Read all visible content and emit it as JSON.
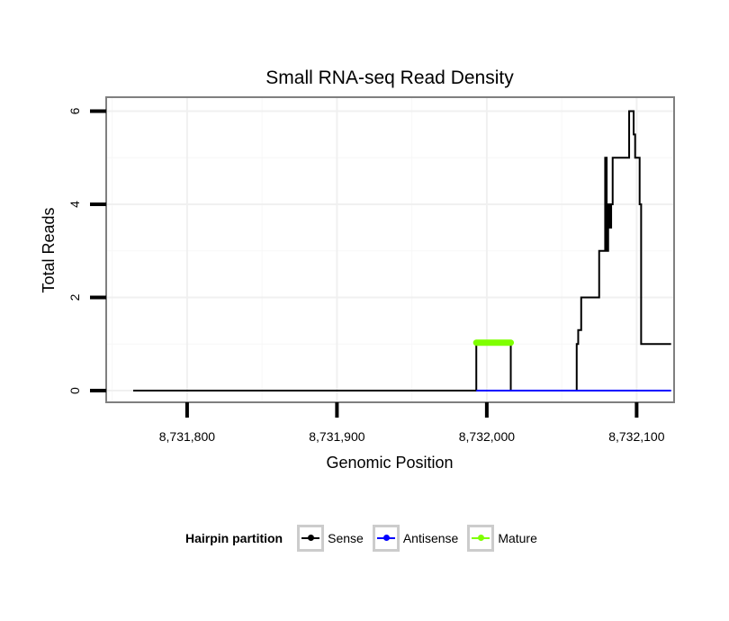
{
  "chart_data": {
    "type": "line",
    "title": "Small RNA-seq Read Density",
    "xlabel": "Genomic Position",
    "ylabel": "Total Reads",
    "xlim": [
      8731746,
      8732125
    ],
    "ylim": [
      -0.25,
      6.3
    ],
    "xticks": [
      8731800,
      8731900,
      8732000,
      8732100
    ],
    "xtick_labels": [
      "8,731,800",
      "8,731,900",
      "8,732,000",
      "8,732,100"
    ],
    "yticks": [
      0,
      2,
      4,
      6
    ],
    "ytick_labels": [
      "0",
      "2",
      "4",
      "6"
    ],
    "grid": true,
    "legend": {
      "title": "Hairpin partition",
      "position": "bottom",
      "entries": [
        {
          "label": "Sense",
          "color": "#000000"
        },
        {
          "label": "Antisense",
          "color": "#0000ff"
        },
        {
          "label": "Mature",
          "color": "#7fff00"
        }
      ]
    },
    "series": [
      {
        "name": "Sense",
        "color": "#000000",
        "x": [
          8731764,
          8731993,
          8731993,
          8732016,
          8732016,
          8732060,
          8732060,
          8732061,
          8732061,
          8732063,
          8732063,
          8732075,
          8732075,
          8732079,
          8732079,
          8732080,
          8732080,
          8732081,
          8732081,
          8732082,
          8732082,
          8732083,
          8732083,
          8732084,
          8732084,
          8732085,
          8732085,
          8732095,
          8732095,
          8732098,
          8732098,
          8732099,
          8732099,
          8732101,
          8732101,
          8732102,
          8732102,
          8732103,
          8732103,
          8732123
        ],
        "y": [
          0,
          0,
          1,
          1,
          0,
          0,
          1,
          1,
          1.3,
          1.3,
          2,
          2,
          3,
          3,
          5,
          5,
          3,
          3,
          4,
          4,
          3.5,
          3.5,
          4,
          4,
          5,
          5,
          5,
          5,
          6,
          6,
          5.5,
          5.5,
          5,
          5,
          5,
          5,
          4,
          4,
          1,
          1
        ]
      },
      {
        "name": "Antisense",
        "color": "#0000ff",
        "x": [
          8731993,
          8732123
        ],
        "y": [
          0,
          0
        ]
      },
      {
        "name": "Mature",
        "color": "#7fff00",
        "x": [
          8731993,
          8732016
        ],
        "y": [
          1.03,
          1.03
        ]
      }
    ]
  }
}
